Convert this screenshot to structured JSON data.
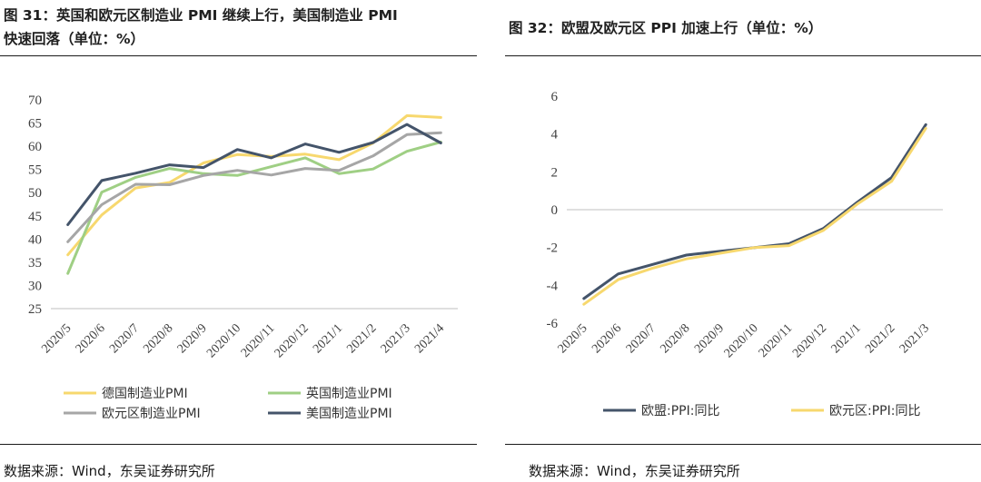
{
  "left": {
    "title": "图 31：英国和欧元区制造业 PMI 继续上行，美国制造业 PMI\n快速回落（单位：%）",
    "source": "数据来源：Wind，东吴证券研究所"
  },
  "right": {
    "title": "图 32：欧盟及欧元区 PPI 加速上行（单位：%）",
    "source": "数据来源：Wind，东吴证券研究所"
  },
  "chart_data": [
    {
      "type": "line",
      "categories": [
        "2020/5",
        "2020/6",
        "2020/7",
        "2020/8",
        "2020/9",
        "2020/10",
        "2020/11",
        "2020/12",
        "2021/1",
        "2021/2",
        "2021/3",
        "2021/4"
      ],
      "ylim": [
        25,
        70
      ],
      "yticks": [
        25,
        30,
        35,
        40,
        45,
        50,
        55,
        60,
        65,
        70
      ],
      "legend_position": "bottom",
      "series": [
        {
          "name": "德国制造业PMI",
          "color": "#f7d86e",
          "values": [
            36.6,
            45.2,
            51.0,
            52.2,
            56.4,
            58.2,
            57.8,
            58.3,
            57.1,
            60.7,
            66.6,
            66.2
          ]
        },
        {
          "name": "英国制造业PMI",
          "color": "#9fcf84",
          "values": [
            32.6,
            50.1,
            53.3,
            55.2,
            54.1,
            53.7,
            55.6,
            57.5,
            54.1,
            55.1,
            58.9,
            60.9
          ]
        },
        {
          "name": "欧元区制造业PMI",
          "color": "#a6a6a6",
          "values": [
            39.4,
            47.4,
            51.8,
            51.7,
            53.7,
            54.8,
            53.8,
            55.2,
            54.8,
            57.9,
            62.5,
            62.9
          ]
        },
        {
          "name": "美国制造业PMI",
          "color": "#44546a",
          "values": [
            43.1,
            52.6,
            54.2,
            56.0,
            55.4,
            59.3,
            57.5,
            60.5,
            58.7,
            60.8,
            64.7,
            60.7
          ]
        }
      ]
    },
    {
      "type": "line",
      "categories": [
        "2020/5",
        "2020/6",
        "2020/7",
        "2020/8",
        "2020/9",
        "2020/10",
        "2020/11",
        "2020/12",
        "2021/1",
        "2021/2",
        "2021/3"
      ],
      "ylim": [
        -6,
        6
      ],
      "yticks": [
        -6,
        -4,
        -2,
        0,
        2,
        4,
        6
      ],
      "legend_position": "bottom",
      "series": [
        {
          "name": "欧盟:PPI:同比",
          "color": "#44546a",
          "values": [
            -4.7,
            -3.4,
            -2.9,
            -2.4,
            -2.2,
            -2.0,
            -1.8,
            -1.0,
            0.4,
            1.7,
            4.5
          ]
        },
        {
          "name": "欧元区:PPI:同比",
          "color": "#f7d86e",
          "values": [
            -5.0,
            -3.7,
            -3.1,
            -2.6,
            -2.3,
            -2.0,
            -1.9,
            -1.1,
            0.3,
            1.5,
            4.3
          ]
        }
      ]
    }
  ]
}
